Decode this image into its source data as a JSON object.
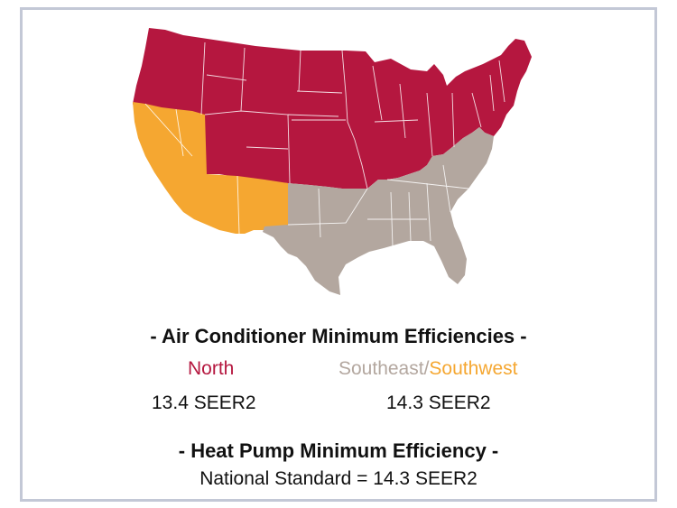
{
  "colors": {
    "north": "#b5173f",
    "southeast": "#b3a79f",
    "southwest": "#f5a731",
    "border": "#c3c8d6"
  },
  "ac": {
    "title": "- Air Conditioner Minimum Efficiencies -",
    "north_label": "North",
    "southeast_label": "Southeast",
    "slash": "/",
    "southwest_label": "Southwest",
    "north_value": "13.4 SEER2",
    "south_value": "14.3 SEER2"
  },
  "heat_pump": {
    "title": "- Heat Pump Minimum Efficiency -",
    "standard": "National Standard = 14.3 SEER2"
  }
}
